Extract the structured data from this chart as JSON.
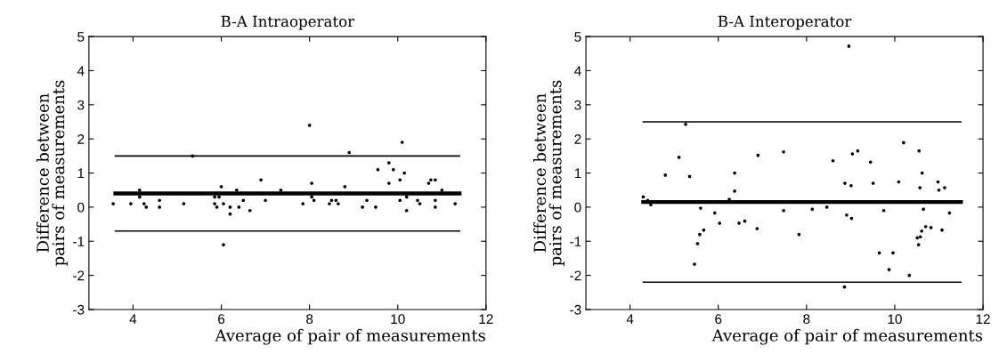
{
  "chart_data": [
    {
      "type": "scatter",
      "title": "B-A Intraoperator",
      "xlabel": "Average of pair of measurements",
      "ylabel": "Difference between\npairs of measurements",
      "xlim": [
        3,
        12
      ],
      "xticks": [
        4,
        6,
        8,
        10,
        12
      ],
      "ylim": [
        -3,
        5
      ],
      "yticks": [
        -3,
        -2,
        -1,
        0,
        1,
        2,
        3,
        4,
        5
      ],
      "grid": false,
      "legend": false,
      "series": [
        {
          "marker": "circle",
          "color": "#000000",
          "x": [
            3.55,
            3.95,
            4.15,
            4.15,
            4.25,
            4.3,
            4.6,
            4.6,
            5.15,
            5.35,
            5.85,
            5.85,
            5.9,
            5.95,
            6.0,
            6.05,
            6.05,
            6.2,
            6.2,
            6.35,
            6.4,
            6.5,
            6.65,
            6.9,
            7.0,
            7.35,
            7.85,
            8.0,
            8.05,
            8.05,
            8.1,
            8.45,
            8.5,
            8.6,
            8.65,
            8.8,
            8.9,
            9.2,
            9.3,
            9.5,
            9.55,
            9.8,
            9.8,
            9.9,
            10.05,
            10.05,
            10.1,
            10.15,
            10.2,
            10.2,
            10.45,
            10.5,
            10.7,
            10.75,
            10.85,
            10.85,
            10.85,
            11.0,
            11.3
          ],
          "values": [
            0.1,
            0.1,
            0.5,
            0.3,
            0.1,
            0.0,
            0.2,
            0.0,
            0.1,
            1.5,
            0.3,
            0.1,
            0.0,
            0.3,
            0.6,
            0.1,
            -1.1,
            0.0,
            -0.2,
            0.5,
            0.0,
            0.2,
            -0.1,
            0.8,
            0.2,
            0.5,
            0.1,
            2.4,
            0.7,
            0.3,
            0.2,
            0.1,
            0.2,
            0.2,
            0.1,
            0.6,
            1.6,
            0.0,
            0.2,
            0.0,
            1.1,
            0.7,
            1.3,
            1.1,
            0.8,
            0.2,
            1.9,
            1.0,
            0.3,
            -0.1,
            0.2,
            0.1,
            0.7,
            0.8,
            0.8,
            0.2,
            0.0,
            0.5,
            0.1
          ]
        },
        {
          "type": "line",
          "marker": "none",
          "color": "#000000",
          "x": [
            3.6,
            11.4
          ],
          "values": [
            0.4,
            0.4
          ]
        },
        {
          "type": "line",
          "marker": "none",
          "color": "#000000",
          "x": [
            3.6,
            11.4
          ],
          "values": [
            1.5,
            1.5
          ]
        },
        {
          "type": "line",
          "marker": "none",
          "color": "#000000",
          "x": [
            3.6,
            11.4
          ],
          "values": [
            -0.7,
            -0.7
          ]
        }
      ]
    },
    {
      "type": "scatter",
      "title": "B-A Interoperator",
      "xlabel": "Average of pair of measurements",
      "ylabel": "Difference between\npairs of measurements",
      "xlim": [
        3,
        12
      ],
      "xticks": [
        4,
        6,
        8,
        10,
        12
      ],
      "ylim": [
        -3,
        5
      ],
      "yticks": [
        -3,
        -2,
        -1,
        0,
        1,
        2,
        3,
        4,
        5
      ],
      "grid": false,
      "legend": false,
      "series": [
        {
          "marker": "circle",
          "color": "#000000",
          "x": [
            4.3,
            4.4,
            4.47,
            4.8,
            5.11,
            5.26,
            5.35,
            5.46,
            5.53,
            5.58,
            5.6,
            5.67,
            5.92,
            6.03,
            6.25,
            6.37,
            6.37,
            6.47,
            6.6,
            6.88,
            6.9,
            7.48,
            7.48,
            7.83,
            8.13,
            8.46,
            8.6,
            8.86,
            8.87,
            8.91,
            8.96,
            9.01,
            9.02,
            9.04,
            9.16,
            9.45,
            9.51,
            9.65,
            9.75,
            9.87,
            9.96,
            10.09,
            10.2,
            10.33,
            10.51,
            10.54,
            10.55,
            10.57,
            10.58,
            10.61,
            10.62,
            10.65,
            10.7,
            10.82,
            10.98,
            11.0,
            11.07,
            11.13,
            11.24
          ],
          "values": [
            0.3,
            0.2,
            0.07,
            0.94,
            1.46,
            2.43,
            0.9,
            -1.67,
            -1.07,
            -0.8,
            -0.03,
            -0.67,
            -0.17,
            -0.47,
            0.23,
            1.0,
            0.47,
            -0.47,
            -0.41,
            -0.63,
            1.52,
            -0.1,
            1.62,
            -0.8,
            -0.06,
            0.0,
            1.36,
            -2.34,
            0.7,
            -0.23,
            4.72,
            0.63,
            -0.33,
            1.56,
            1.65,
            1.32,
            0.7,
            -1.34,
            -0.1,
            -1.83,
            -1.34,
            0.74,
            1.89,
            -2.0,
            -0.9,
            -1.1,
            1.65,
            0.57,
            -0.87,
            -0.7,
            1.0,
            -0.06,
            -0.57,
            -0.6,
            0.74,
            0.5,
            -0.67,
            0.57,
            -0.17
          ]
        },
        {
          "type": "line",
          "marker": "none",
          "color": "#000000",
          "x": [
            4.3,
            11.5
          ],
          "values": [
            0.15,
            0.15
          ]
        },
        {
          "type": "line",
          "marker": "none",
          "color": "#000000",
          "x": [
            4.3,
            11.5
          ],
          "values": [
            2.5,
            2.5
          ]
        },
        {
          "type": "line",
          "marker": "none",
          "color": "#000000",
          "x": [
            4.3,
            11.5
          ],
          "values": [
            -2.2,
            -2.2
          ]
        }
      ]
    }
  ]
}
